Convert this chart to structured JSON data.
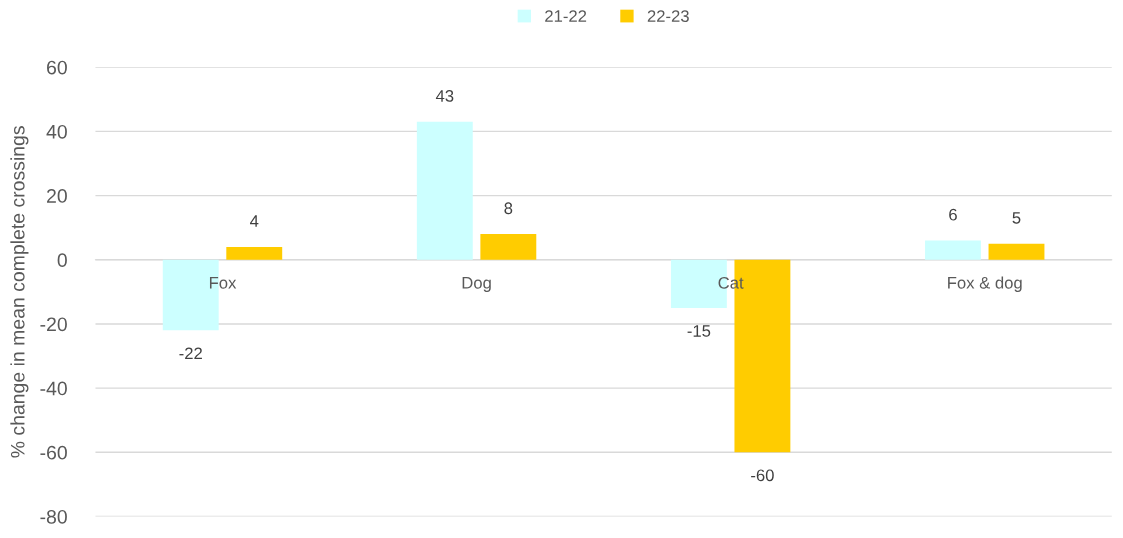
{
  "chart_data": {
    "type": "bar",
    "ylabel": "% change in mean complete crossings",
    "categories": [
      "Fox",
      "Dog",
      "Cat",
      "Fox & dog"
    ],
    "series": [
      {
        "name": "21-22",
        "color": "#ccffff",
        "values": [
          -22,
          43,
          -15,
          6
        ]
      },
      {
        "name": "22-23",
        "color": "#ffcc00",
        "values": [
          4,
          8,
          -60,
          5
        ]
      }
    ],
    "ylim": [
      -80,
      60
    ],
    "yticks": [
      -80,
      -60,
      -40,
      -20,
      0,
      20,
      40,
      60
    ],
    "grid": "y",
    "legend": "top",
    "data_labels": true
  }
}
